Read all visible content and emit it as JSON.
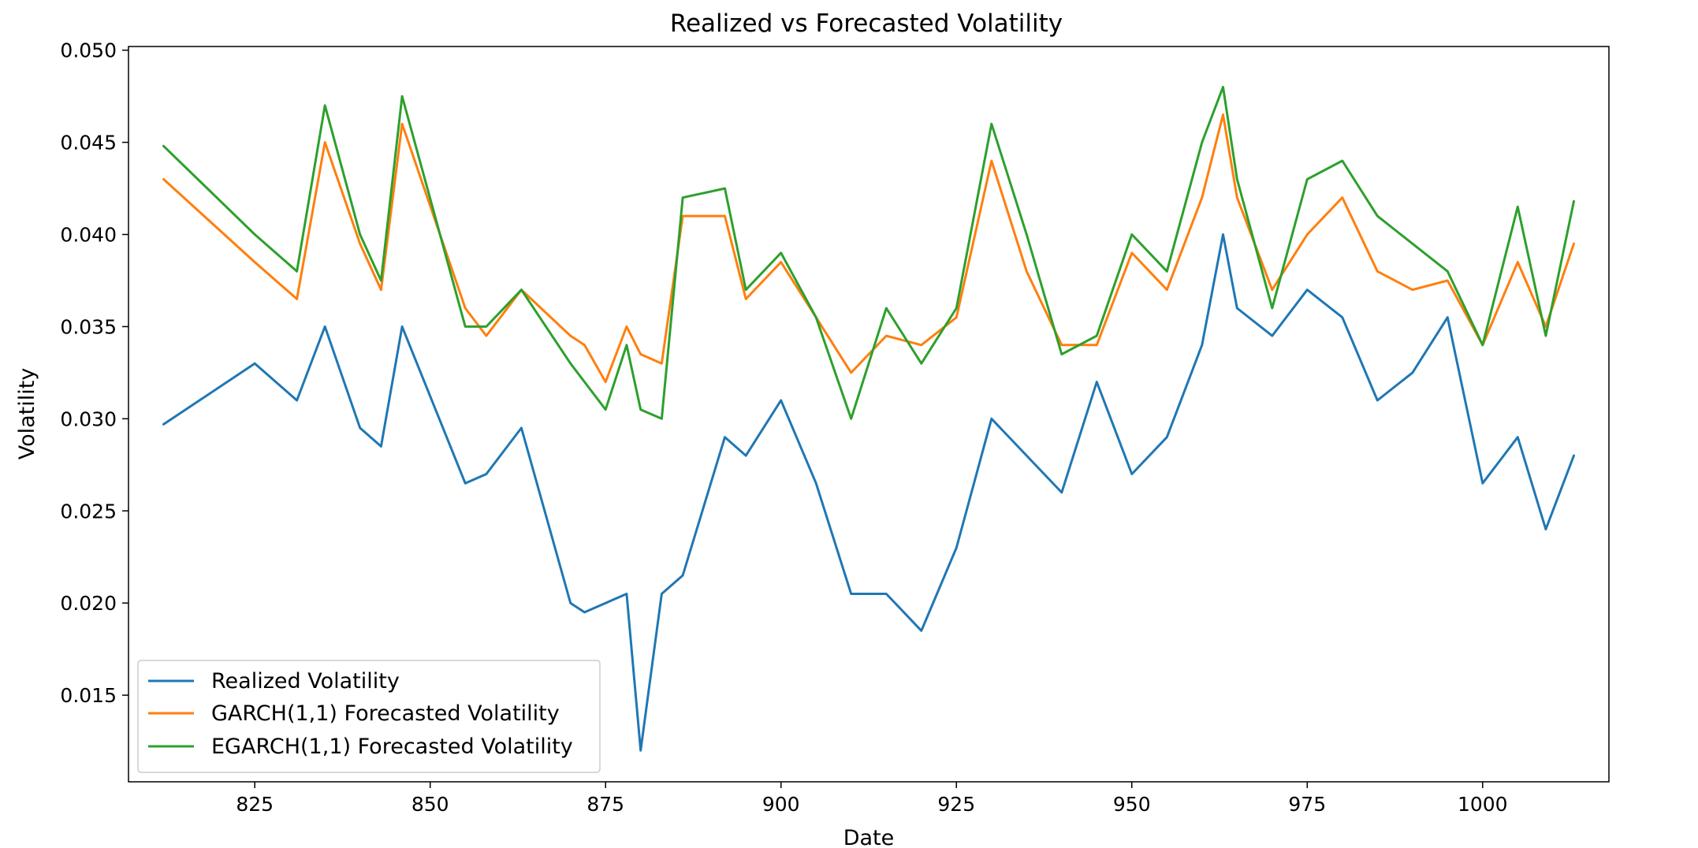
{
  "chart_data": {
    "type": "line",
    "title": "Realized vs Forecasted Volatility",
    "xlabel": "Date",
    "ylabel": "Volatility",
    "xlim": [
      807,
      1018
    ],
    "ylim": [
      0.0103,
      0.0502
    ],
    "xticks": [
      825,
      850,
      875,
      900,
      925,
      950,
      975,
      1000
    ],
    "yticks": [
      0.015,
      0.02,
      0.025,
      0.03,
      0.035,
      0.04,
      0.045,
      0.05
    ],
    "ytick_labels": [
      "0.015",
      "0.020",
      "0.025",
      "0.030",
      "0.035",
      "0.040",
      "0.045",
      "0.050"
    ],
    "grid": false,
    "legend_position": "lower-left",
    "x": [
      812,
      825,
      831,
      835,
      840,
      843,
      846,
      855,
      858,
      863,
      870,
      872,
      875,
      878,
      880,
      883,
      886,
      892,
      895,
      900,
      905,
      910,
      915,
      920,
      925,
      930,
      935,
      940,
      945,
      950,
      955,
      960,
      963,
      965,
      970,
      975,
      980,
      985,
      990,
      995,
      1000,
      1005,
      1009,
      1013
    ],
    "series": [
      {
        "name": "Realized Volatility",
        "color": "#1f77b4",
        "values": [
          0.0297,
          0.033,
          0.031,
          0.035,
          0.0295,
          0.0285,
          0.035,
          0.0265,
          0.027,
          0.0295,
          0.02,
          0.0195,
          0.02,
          0.0205,
          0.012,
          0.0205,
          0.0215,
          0.029,
          0.028,
          0.031,
          0.0265,
          0.0205,
          0.0205,
          0.0185,
          0.023,
          0.03,
          0.028,
          0.026,
          0.032,
          0.027,
          0.029,
          0.034,
          0.04,
          0.036,
          0.0345,
          0.037,
          0.0355,
          0.031,
          0.0325,
          0.0355,
          0.0265,
          0.029,
          0.024,
          0.028
        ]
      },
      {
        "name": "GARCH(1,1) Forecasted Volatility",
        "color": "#ff7f0e",
        "values": [
          0.043,
          0.0385,
          0.0365,
          0.045,
          0.0395,
          0.037,
          0.046,
          0.036,
          0.0345,
          0.037,
          0.0345,
          0.034,
          0.032,
          0.035,
          0.0335,
          0.033,
          0.041,
          0.041,
          0.0365,
          0.0385,
          0.0355,
          0.0325,
          0.0345,
          0.034,
          0.0355,
          0.044,
          0.038,
          0.034,
          0.034,
          0.039,
          0.037,
          0.042,
          0.0465,
          0.042,
          0.037,
          0.04,
          0.042,
          0.038,
          0.037,
          0.0375,
          0.034,
          0.0385,
          0.035,
          0.0395
        ]
      },
      {
        "name": "EGARCH(1,1) Forecasted Volatility",
        "color": "#2ca02c",
        "values": [
          0.0448,
          0.04,
          0.038,
          0.047,
          0.04,
          0.0375,
          0.0475,
          0.035,
          0.035,
          0.037,
          0.033,
          0.032,
          0.0305,
          0.034,
          0.0305,
          0.03,
          0.042,
          0.0425,
          0.037,
          0.039,
          0.0355,
          0.03,
          0.036,
          0.033,
          0.036,
          0.046,
          0.04,
          0.0335,
          0.0345,
          0.04,
          0.038,
          0.045,
          0.048,
          0.043,
          0.036,
          0.043,
          0.044,
          0.041,
          0.0395,
          0.038,
          0.034,
          0.0415,
          0.0345,
          0.0418
        ]
      }
    ]
  }
}
